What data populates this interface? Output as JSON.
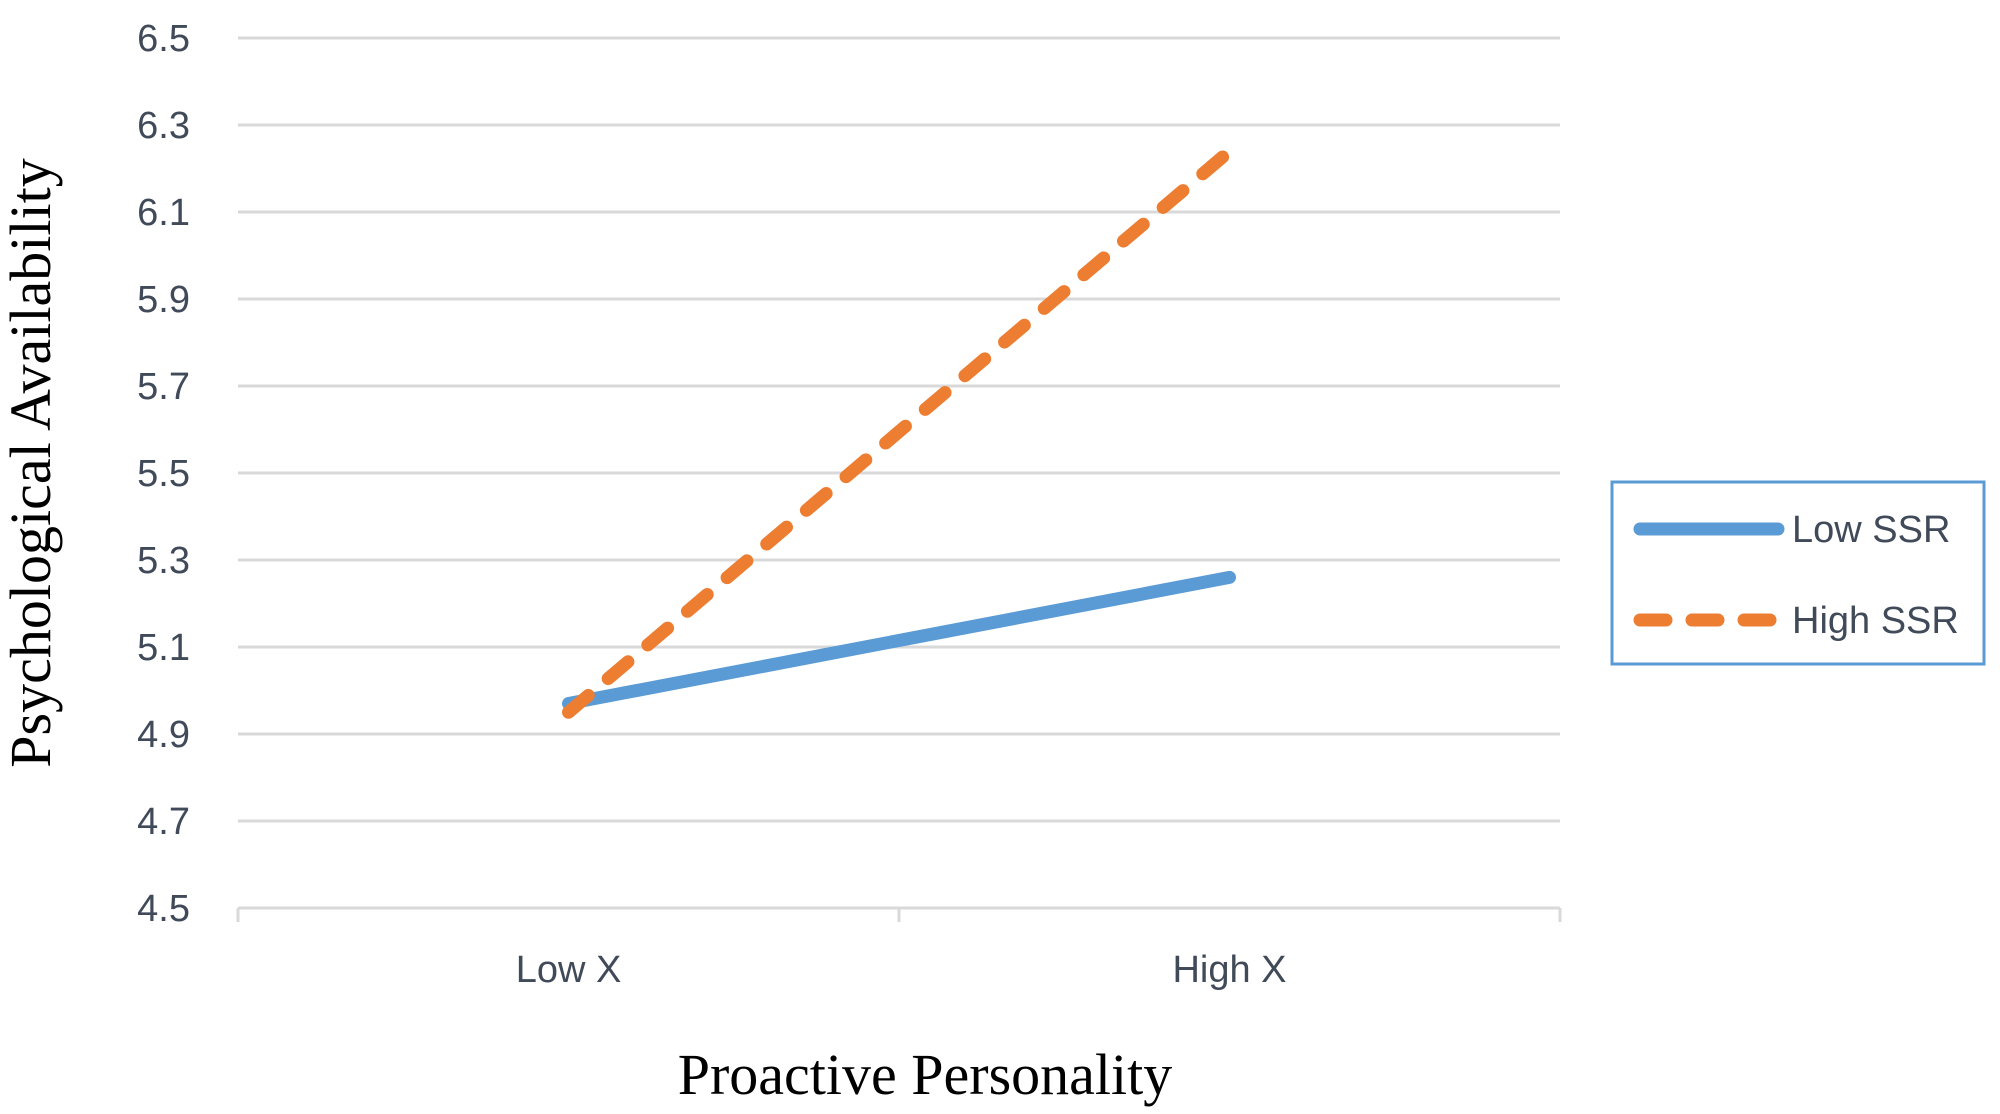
{
  "chart_data": {
    "type": "line",
    "categories": [
      "Low X",
      "High X"
    ],
    "series": [
      {
        "name": "Low SSR",
        "values": [
          4.97,
          5.26
        ],
        "color": "#5b9bd5",
        "style": "solid"
      },
      {
        "name": "High SSR",
        "values": [
          4.95,
          6.24
        ],
        "color": "#ed7d31",
        "style": "dashed"
      }
    ],
    "xlabel": "Proactive Personality",
    "ylabel": "Psychological Availability",
    "ylim": [
      4.5,
      6.5
    ],
    "yticks": [
      "4.5",
      "4.7",
      "4.9",
      "5.1",
      "5.3",
      "5.5",
      "5.7",
      "5.9",
      "6.1",
      "6.3",
      "6.5"
    ],
    "grid": true,
    "legend_position": "right"
  }
}
